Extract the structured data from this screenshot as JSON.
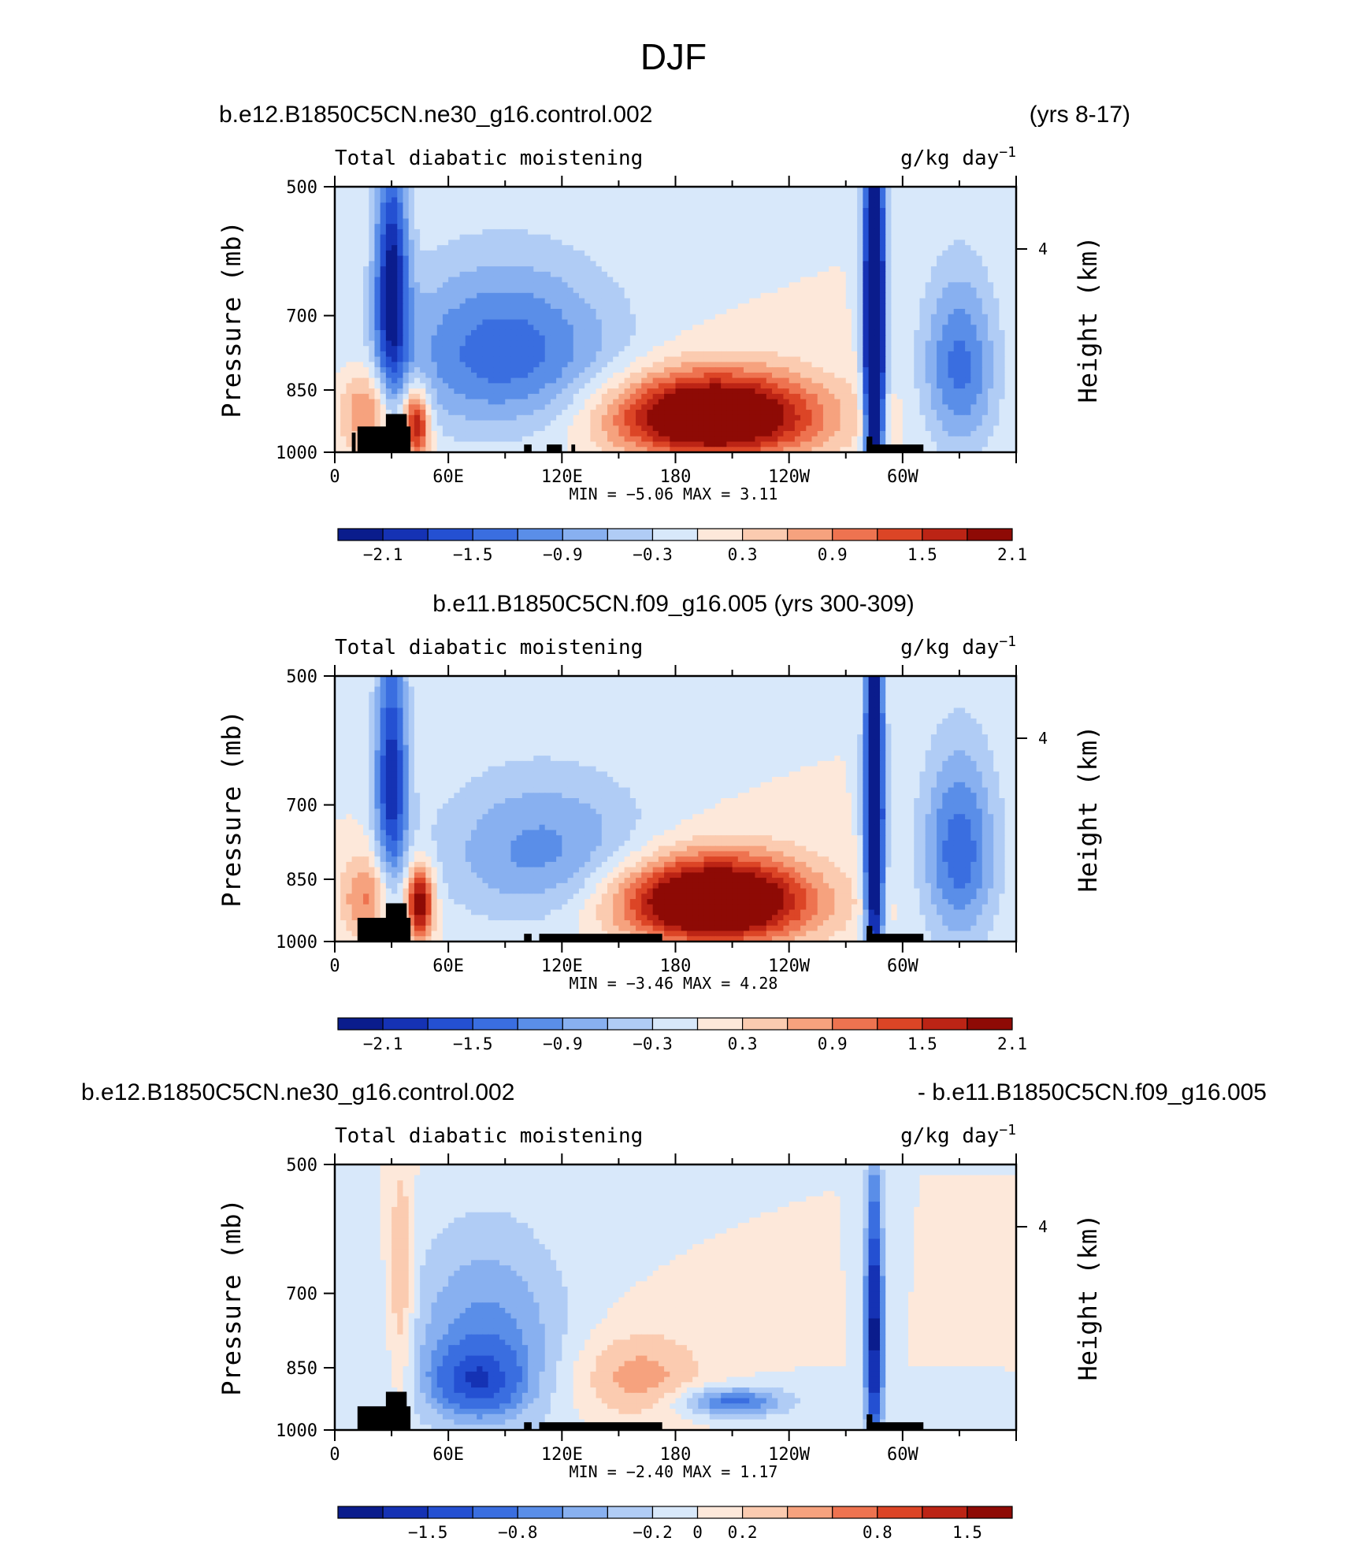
{
  "figure": {
    "title": "DJF"
  },
  "palette": {
    "colors": [
      "#0a1c8c",
      "#1532b4",
      "#2450d2",
      "#3a6ee0",
      "#5a8ee8",
      "#88b0f0",
      "#b0ccf5",
      "#d8e8fa",
      "#fde8da",
      "#fbcbb0",
      "#f6a27e",
      "#ee7350",
      "#dc4526",
      "#bc2415",
      "#8e0a05"
    ],
    "landmask": "#000000"
  },
  "panels": [
    {
      "header_left": "b.e12.B1850C5CN.ne30_g16.control.002",
      "header_right": "(yrs 8-17)",
      "header_center": "",
      "variable": "Total diabatic moistening",
      "units": "g/kg day",
      "units_exp": "−1",
      "ylabel": "Pressure (mb)",
      "ylabel_right": "Height (km)",
      "stats": "MIN =   −5.06   MAX =    3.11",
      "colorbar_labels": [
        "−2.1",
        "−1.5",
        "−0.9",
        "−0.3",
        "0.3",
        "0.9",
        "1.5",
        "2.1"
      ]
    },
    {
      "header_left": "",
      "header_right": "",
      "header_center": "b.e11.B1850C5CN.f09_g16.005 (yrs 300-309)",
      "variable": "Total diabatic moistening",
      "units": "g/kg day",
      "units_exp": "−1",
      "ylabel": "Pressure (mb)",
      "ylabel_right": "Height (km)",
      "stats": "MIN =   −3.46   MAX =    4.28",
      "colorbar_labels": [
        "−2.1",
        "−1.5",
        "−0.9",
        "−0.3",
        "0.3",
        "0.9",
        "1.5",
        "2.1"
      ]
    },
    {
      "header_left": "b.e12.B1850C5CN.ne30_g16.control.002",
      "header_right": "- b.e11.B1850C5CN.f09_g16.005",
      "header_center": "",
      "variable": "Total diabatic moistening",
      "units": "g/kg day",
      "units_exp": "−1",
      "ylabel": "Pressure (mb)",
      "ylabel_right": "Height (km)",
      "stats": "MIN =   −2.40   MAX =    1.17",
      "colorbar_labels": [
        "−1.5",
        "−0.8",
        "−0.2",
        "0",
        "0.2",
        "0.8",
        "1.5"
      ]
    }
  ],
  "chart_data": [
    {
      "type": "heatmap",
      "title": "b.e12.B1850C5CN.ne30_g16.control.002 (yrs 8-17)",
      "variable": "Total diabatic moistening",
      "units": "g/kg day^-1",
      "x_ticks": [
        "0",
        "60E",
        "120E",
        "180",
        "120W",
        "60W"
      ],
      "y_ticks": [
        "500",
        "700",
        "850",
        "1000"
      ],
      "y_right_ticks": [
        "4"
      ],
      "xlim": [
        0,
        360
      ],
      "ylim": [
        1000,
        500
      ],
      "levels": [
        -2.1,
        -1.8,
        -1.5,
        -1.2,
        -0.9,
        -0.6,
        -0.3,
        0,
        0.3,
        0.6,
        0.9,
        1.2,
        1.5,
        1.8,
        2.1
      ],
      "colorbar_ticks": [
        -2.1,
        -1.5,
        -0.9,
        -0.3,
        0.3,
        0.9,
        1.5,
        2.1
      ],
      "min": -5.06,
      "max": 3.11,
      "features": [
        {
          "lon": 200,
          "p": 910,
          "amp": 3.0,
          "slon": 38,
          "sp": 70
        },
        {
          "lon": 90,
          "p": 770,
          "amp": -1.4,
          "slon": 42,
          "sp": 120
        },
        {
          "lon": 285,
          "p": 720,
          "amp": -4.5,
          "slon": 3.5,
          "sp": 260
        },
        {
          "lon": 330,
          "p": 800,
          "amp": -1.3,
          "slon": 14,
          "sp": 130
        },
        {
          "lon": 30,
          "p": 650,
          "amp": -2.2,
          "slon": 6,
          "sp": 150
        },
        {
          "lon": 43,
          "p": 930,
          "amp": 2.0,
          "slon": 5,
          "sp": 60
        },
        {
          "lon": 17,
          "p": 900,
          "amp": 1.1,
          "slon": 10,
          "sp": 70
        }
      ],
      "land": [
        [
          10,
          950
        ],
        [
          12,
          40,
          935
        ],
        [
          27,
          38,
          905
        ],
        [
          100,
          104,
          980
        ],
        [
          112,
          120,
          980
        ],
        [
          125,
          127,
          980
        ],
        [
          281,
          311,
          980
        ],
        [
          281,
          284,
          960
        ]
      ]
    },
    {
      "type": "heatmap",
      "title": "b.e11.B1850C5CN.f09_g16.005 (yrs 300-309)",
      "variable": "Total diabatic moistening",
      "units": "g/kg day^-1",
      "x_ticks": [
        "0",
        "60E",
        "120E",
        "180",
        "120W",
        "60W"
      ],
      "y_ticks": [
        "500",
        "700",
        "850",
        "1000"
      ],
      "y_right_ticks": [
        "4"
      ],
      "xlim": [
        0,
        360
      ],
      "ylim": [
        1000,
        500
      ],
      "levels": [
        -2.1,
        -1.8,
        -1.5,
        -1.2,
        -0.9,
        -0.6,
        -0.3,
        0,
        0.3,
        0.6,
        0.9,
        1.2,
        1.5,
        1.8,
        2.1
      ],
      "colorbar_ticks": [
        -2.1,
        -1.5,
        -0.9,
        -0.3,
        0.3,
        0.9,
        1.5,
        2.1
      ],
      "min": -3.46,
      "max": 4.28,
      "features": [
        {
          "lon": 200,
          "p": 900,
          "amp": 3.2,
          "slon": 35,
          "sp": 70
        },
        {
          "lon": 110,
          "p": 790,
          "amp": -1.0,
          "slon": 40,
          "sp": 110
        },
        {
          "lon": 285,
          "p": 720,
          "amp": -3.4,
          "slon": 3.5,
          "sp": 260
        },
        {
          "lon": 330,
          "p": 790,
          "amp": -1.4,
          "slon": 14,
          "sp": 140
        },
        {
          "lon": 30,
          "p": 650,
          "amp": -2.0,
          "slon": 6,
          "sp": 150
        },
        {
          "lon": 45,
          "p": 905,
          "amp": 2.3,
          "slon": 5,
          "sp": 60
        },
        {
          "lon": 17,
          "p": 890,
          "amp": 1.0,
          "slon": 10,
          "sp": 70
        }
      ],
      "land": [
        [
          12,
          40,
          940
        ],
        [
          27,
          38,
          905
        ],
        [
          100,
          104,
          980
        ],
        [
          108,
          173,
          980
        ],
        [
          281,
          311,
          980
        ],
        [
          281,
          284,
          960
        ]
      ]
    },
    {
      "type": "heatmap",
      "title": "b.e12.B1850C5CN.ne30_g16.control.002 - b.e11.B1850C5CN.f09_g16.005",
      "variable": "Total diabatic moistening",
      "units": "g/kg day^-1",
      "x_ticks": [
        "0",
        "60E",
        "120E",
        "180",
        "120W",
        "60W"
      ],
      "y_ticks": [
        "500",
        "700",
        "850",
        "1000"
      ],
      "y_right_ticks": [
        "4"
      ],
      "xlim": [
        0,
        360
      ],
      "ylim": [
        1000,
        500
      ],
      "levels": [
        -2.0,
        -1.5,
        -1.2,
        -0.8,
        -0.6,
        -0.4,
        -0.2,
        0,
        0.2,
        0.4,
        0.6,
        0.8,
        1.2,
        1.5,
        2.0
      ],
      "colorbar_ticks": [
        -1.5,
        -0.8,
        -0.2,
        0,
        0.2,
        0.8,
        1.5
      ],
      "min": -2.4,
      "max": 1.17,
      "features": [
        {
          "lon": 80,
          "p": 800,
          "amp": -0.7,
          "slon": 30,
          "sp": 150
        },
        {
          "lon": 75,
          "p": 880,
          "amp": -1.0,
          "slon": 15,
          "sp": 50
        },
        {
          "lon": 160,
          "p": 870,
          "amp": 0.5,
          "slon": 25,
          "sp": 70
        },
        {
          "lon": 210,
          "p": 930,
          "amp": -0.9,
          "slon": 20,
          "sp": 25
        },
        {
          "lon": 285,
          "p": 780,
          "amp": -2.3,
          "slon": 3,
          "sp": 170
        },
        {
          "lon": 35,
          "p": 700,
          "amp": 0.5,
          "slon": 5,
          "sp": 150
        }
      ],
      "land": [
        [
          12,
          40,
          940
        ],
        [
          27,
          38,
          905
        ],
        [
          100,
          104,
          980
        ],
        [
          108,
          173,
          980
        ],
        [
          281,
          311,
          980
        ],
        [
          281,
          284,
          960
        ]
      ]
    }
  ]
}
